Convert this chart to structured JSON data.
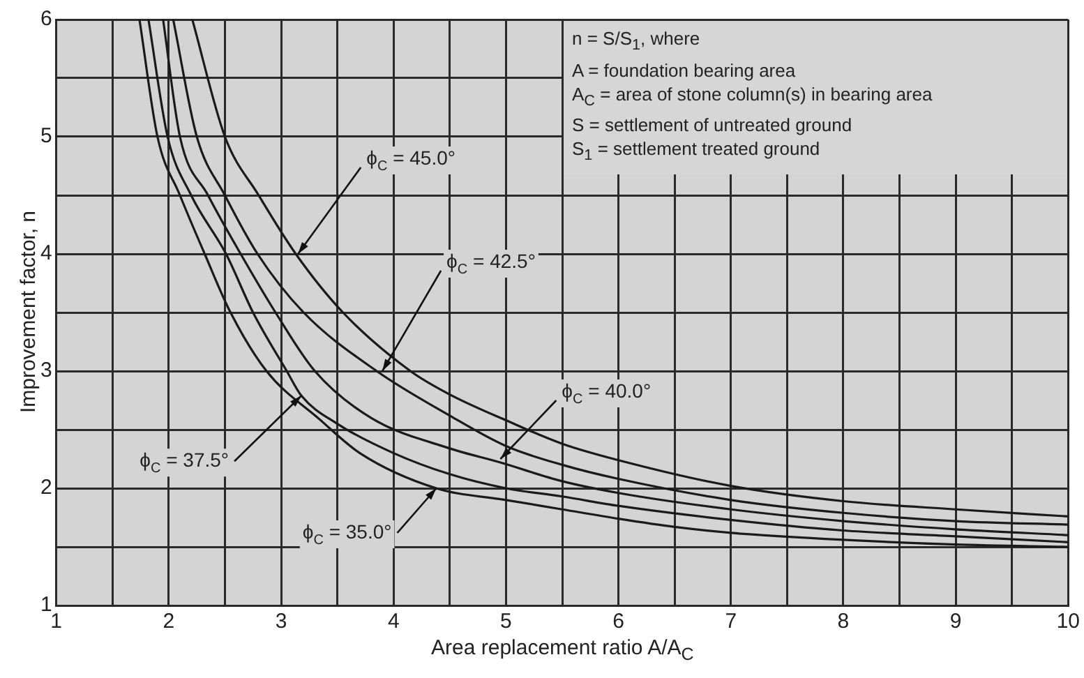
{
  "chart_data": {
    "type": "line",
    "xlabel": "Area replacement ratio A/A$_{C}$",
    "ylabel": "Improvement factor, n",
    "xlim": [
      1,
      10
    ],
    "ylim": [
      1,
      6
    ],
    "xticks": [
      1,
      {
        "value": 1.5,
        "label": null
      },
      2,
      {
        "value": 2.5,
        "label": null
      },
      3,
      {
        "value": 3.5,
        "label": null
      },
      4,
      {
        "value": 4.5,
        "label": null
      },
      5,
      {
        "value": 5.5,
        "label": null
      },
      6,
      {
        "value": 6.5,
        "label": null
      },
      7,
      {
        "value": 7.5,
        "label": null
      },
      8,
      {
        "value": 8.5,
        "label": null
      },
      9,
      {
        "value": 9.5,
        "label": null
      },
      10
    ],
    "yticks": [
      1,
      {
        "value": 1.5,
        "label": null
      },
      2,
      {
        "value": 2.5,
        "label": null
      },
      3,
      {
        "value": 3.5,
        "label": null
      },
      4,
      {
        "value": 4.5,
        "label": null
      },
      5,
      {
        "value": 5.5,
        "label": null
      },
      6
    ],
    "grid": true,
    "marker": "none",
    "line_style": "solid",
    "series": [
      {
        "color": "#1a1a1a",
        "x": [
          1.74,
          1.9,
          2.1,
          2.32,
          2.55,
          2.87,
          3.34,
          3.7,
          4.38,
          5,
          5.5,
          6,
          6.5,
          7,
          8,
          9,
          10
        ],
        "values": [
          6,
          5,
          4.5,
          4,
          3.5,
          3,
          2.59,
          2.3,
          2,
          1.9,
          1.82,
          1.74,
          1.67,
          1.62,
          1.56,
          1.52,
          1.5
        ]
      },
      {
        "color": "#1a1a1a",
        "x": [
          1.82,
          1.99,
          2.2,
          2.51,
          2.75,
          3.05,
          3.18,
          3.5,
          4,
          4.5,
          5,
          5.5,
          6,
          7,
          8,
          9,
          10
        ],
        "values": [
          6,
          5,
          4.5,
          4,
          3.5,
          3,
          2.79,
          2.55,
          2.3,
          2.12,
          2.0,
          1.93,
          1.85,
          1.73,
          1.64,
          1.59,
          1.54
        ]
      },
      {
        "color": "#1a1a1a",
        "x": [
          1.95,
          2.1,
          2.35,
          2.64,
          2.95,
          3.3,
          3.8,
          4.5,
          4.95,
          5.5,
          6,
          7,
          8,
          9,
          10
        ],
        "values": [
          6,
          5,
          4.5,
          4,
          3.5,
          3,
          2.6,
          2.34,
          2.22,
          2.06,
          1.96,
          1.82,
          1.72,
          1.65,
          1.6
        ]
      },
      {
        "color": "#1a1a1a",
        "x": [
          2.04,
          2.25,
          2.5,
          2.79,
          3.2,
          3.85,
          4.5,
          5,
          5.5,
          6,
          7,
          8,
          9,
          10
        ],
        "values": [
          6,
          5,
          4.5,
          4,
          3.5,
          3,
          2.62,
          2.36,
          2.2,
          2.08,
          1.9,
          1.79,
          1.72,
          1.69
        ]
      },
      {
        "color": "#1a1a1a",
        "x": [
          2.21,
          2.5,
          2.8,
          3.13,
          3.55,
          4.15,
          4.5,
          5,
          5.5,
          6,
          7,
          8,
          9,
          10
        ],
        "values": [
          6,
          5,
          4.5,
          4,
          3.5,
          3,
          2.8,
          2.58,
          2.38,
          2.24,
          2.02,
          1.89,
          1.82,
          1.76
        ]
      }
    ],
    "annotations": [
      {
        "text": "ϕ$_{C}$ = 45.0°",
        "x": 3.15,
        "y": 4.0
      },
      {
        "text": "ϕ$_{C}$ = 42.5°",
        "x": 3.9,
        "y": 3.0
      },
      {
        "text": "ϕ$_{C}$ = 40.0°",
        "x": 4.95,
        "y": 2.25
      },
      {
        "text": "ϕ$_{C}$ = 37.5°",
        "x": 3.18,
        "y": 2.79
      },
      {
        "text": "ϕ$_{C}$ = 35.0°",
        "x": 4.38,
        "y": 2.0
      },
      "n = S/S$_{1}$, where",
      "A = foundation bearing area",
      "A$_{C}$ = area of stone column(s) in bearing area",
      "S = settlement of untreated ground",
      "S$_{1}$ = settlement treated ground"
    ]
  }
}
